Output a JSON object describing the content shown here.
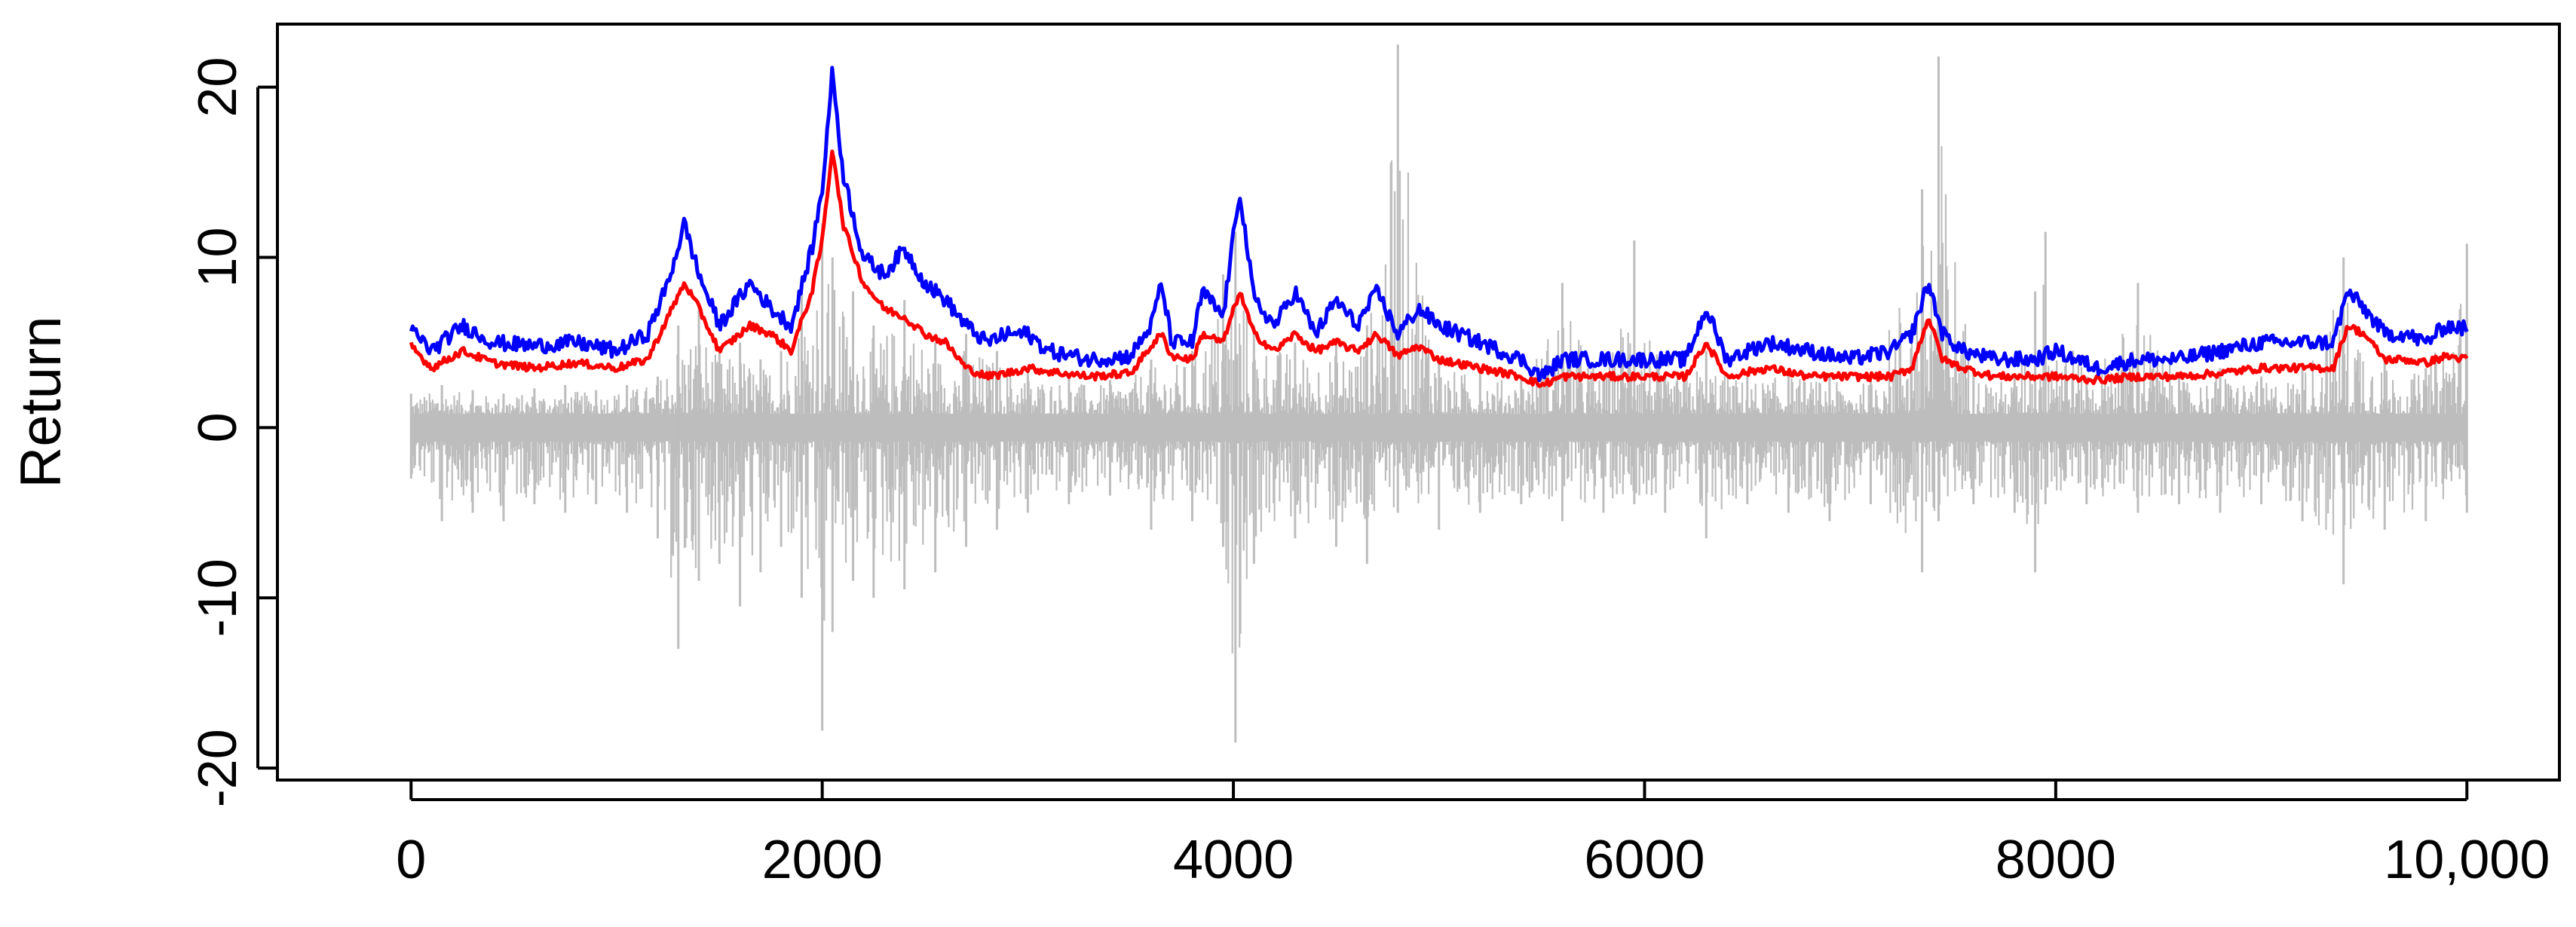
{
  "chart_data": {
    "type": "line",
    "title": "",
    "xlabel": "",
    "ylabel": "Return",
    "xlim": [
      -650,
      10450
    ],
    "ylim": [
      -20.7,
      23.7
    ],
    "grid": false,
    "legend": "none",
    "x_ticks": [
      {
        "value": 0,
        "label": "0"
      },
      {
        "value": 2000,
        "label": "2000"
      },
      {
        "value": 4000,
        "label": "4000"
      },
      {
        "value": 6000,
        "label": "6000"
      },
      {
        "value": 8000,
        "label": "8000"
      },
      {
        "value": 10000,
        "label": "10,000"
      }
    ],
    "y_ticks": [
      {
        "value": -20,
        "label": "-20"
      },
      {
        "value": -10,
        "label": "-10"
      },
      {
        "value": 0,
        "label": "0"
      },
      {
        "value": 10,
        "label": "10"
      },
      {
        "value": 20,
        "label": "20"
      }
    ],
    "n_observations": 10000,
    "series": [
      {
        "role": "returns",
        "style": "vertical-spikes",
        "color": "#bdbdbd",
        "points": [
          [
            0,
            2.0,
            -3.0
          ],
          [
            150,
            2.5,
            -5.5
          ],
          [
            300,
            2.2,
            -5.0
          ],
          [
            450,
            2.0,
            -5.5
          ],
          [
            600,
            2.3,
            -4.5
          ],
          [
            750,
            2.5,
            -5.0
          ],
          [
            900,
            2.2,
            -4.5
          ],
          [
            1050,
            2.5,
            -5.0
          ],
          [
            1200,
            3.0,
            -6.5
          ],
          [
            1300,
            6.0,
            -13.0
          ],
          [
            1400,
            7.0,
            -9.0
          ],
          [
            1500,
            4.5,
            -8.0
          ],
          [
            1600,
            5.0,
            -10.5
          ],
          [
            1700,
            4.0,
            -8.5
          ],
          [
            1800,
            4.5,
            -7.0
          ],
          [
            1900,
            8.0,
            -10.0
          ],
          [
            2000,
            12.0,
            -17.8
          ],
          [
            2050,
            10.0,
            -12.0
          ],
          [
            2150,
            8.0,
            -9.0
          ],
          [
            2250,
            6.0,
            -10.0
          ],
          [
            2400,
            7.5,
            -9.5
          ],
          [
            2550,
            5.0,
            -8.5
          ],
          [
            2700,
            5.5,
            -7.0
          ],
          [
            2850,
            4.5,
            -6.0
          ],
          [
            3000,
            3.5,
            -5.0
          ],
          [
            3200,
            3.0,
            -4.5
          ],
          [
            3400,
            2.8,
            -4.0
          ],
          [
            3600,
            4.0,
            -6.0
          ],
          [
            3800,
            4.5,
            -5.5
          ],
          [
            3950,
            9.0,
            -7.0
          ],
          [
            4010,
            11.5,
            -18.5
          ],
          [
            4100,
            6.0,
            -8.0
          ],
          [
            4300,
            5.0,
            -6.5
          ],
          [
            4500,
            5.0,
            -7.0
          ],
          [
            4650,
            6.0,
            -8.0
          ],
          [
            4800,
            22.5,
            -5.0
          ],
          [
            5000,
            4.0,
            -6.0
          ],
          [
            5200,
            3.5,
            -5.0
          ],
          [
            5400,
            3.0,
            -4.5
          ],
          [
            5600,
            8.5,
            -5.5
          ],
          [
            5800,
            3.0,
            -5.0
          ],
          [
            5950,
            11.0,
            -4.5
          ],
          [
            6100,
            3.0,
            -5.0
          ],
          [
            6300,
            4.5,
            -6.5
          ],
          [
            6500,
            3.0,
            -4.5
          ],
          [
            6700,
            3.5,
            -5.0
          ],
          [
            6900,
            3.0,
            -5.5
          ],
          [
            7100,
            3.0,
            -4.5
          ],
          [
            7350,
            14.0,
            -8.5
          ],
          [
            7430,
            21.8,
            -5.5
          ],
          [
            7600,
            3.5,
            -4.5
          ],
          [
            7800,
            3.0,
            -5.0
          ],
          [
            7900,
            8.0,
            -8.5
          ],
          [
            7950,
            11.5,
            -4.5
          ],
          [
            8150,
            3.0,
            -4.5
          ],
          [
            8400,
            8.5,
            -5.0
          ],
          [
            8600,
            3.0,
            -4.5
          ],
          [
            8800,
            3.5,
            -5.0
          ],
          [
            9000,
            3.0,
            -4.5
          ],
          [
            9200,
            3.5,
            -5.5
          ],
          [
            9400,
            10.0,
            -9.2
          ],
          [
            9600,
            4.0,
            -6.0
          ],
          [
            9800,
            3.5,
            -5.5
          ],
          [
            10000,
            10.8,
            -5.0
          ]
        ]
      },
      {
        "role": "lower-band",
        "style": "line",
        "color": "#ff0000",
        "x": [
          0,
          100,
          250,
          400,
          600,
          800,
          1000,
          1150,
          1250,
          1330,
          1400,
          1500,
          1650,
          1750,
          1850,
          1950,
          2000,
          2050,
          2100,
          2200,
          2300,
          2400,
          2500,
          2600,
          2700,
          2800,
          2900,
          3000,
          3100,
          3300,
          3500,
          3600,
          3650,
          3700,
          3800,
          3850,
          3950,
          4030,
          4100,
          4200,
          4300,
          4400,
          4500,
          4600,
          4700,
          4800,
          4900,
          5000,
          5200,
          5400,
          5500,
          5600,
          5800,
          6000,
          6200,
          6300,
          6400,
          6600,
          6800,
          7000,
          7200,
          7300,
          7380,
          7450,
          7550,
          7700,
          7900,
          8000,
          8200,
          8400,
          8600,
          8800,
          9000,
          9200,
          9350,
          9420,
          9500,
          9600,
          9700,
          9800,
          9900,
          10000
        ],
        "y": [
          4.8,
          3.5,
          4.5,
          3.8,
          3.5,
          3.8,
          3.5,
          4.0,
          6.5,
          8.5,
          7.0,
          4.5,
          6.0,
          5.5,
          4.5,
          8.0,
          11.0,
          16.5,
          12.0,
          8.5,
          7.0,
          6.5,
          5.5,
          5.0,
          3.5,
          3.0,
          3.2,
          3.5,
          3.3,
          3.0,
          3.2,
          4.8,
          5.5,
          4.2,
          4.0,
          5.5,
          5.0,
          8.0,
          5.5,
          4.5,
          5.5,
          4.5,
          5.0,
          4.5,
          5.5,
          4.2,
          4.8,
          4.0,
          3.5,
          3.0,
          2.5,
          3.0,
          3.0,
          3.0,
          3.0,
          5.0,
          3.0,
          3.5,
          3.0,
          3.0,
          3.0,
          3.5,
          6.5,
          4.0,
          3.5,
          3.0,
          3.0,
          3.0,
          2.8,
          3.0,
          3.0,
          3.2,
          3.5,
          3.5,
          3.5,
          6.0,
          5.5,
          4.0,
          4.0,
          3.8,
          4.2,
          4.0
        ]
      },
      {
        "role": "upper-band",
        "style": "line",
        "color": "#0000ff",
        "x": [
          0,
          100,
          250,
          400,
          600,
          800,
          1000,
          1150,
          1250,
          1330,
          1400,
          1500,
          1650,
          1750,
          1850,
          1950,
          2000,
          2050,
          2100,
          2200,
          2300,
          2400,
          2500,
          2600,
          2700,
          2800,
          2900,
          3000,
          3100,
          3300,
          3500,
          3600,
          3650,
          3700,
          3800,
          3850,
          3950,
          4030,
          4100,
          4200,
          4300,
          4400,
          4500,
          4600,
          4700,
          4800,
          4900,
          5000,
          5200,
          5400,
          5500,
          5600,
          5800,
          6000,
          6200,
          6300,
          6400,
          6600,
          6800,
          7000,
          7200,
          7300,
          7380,
          7450,
          7550,
          7700,
          7900,
          8000,
          8200,
          8400,
          8600,
          8800,
          9000,
          9200,
          9350,
          9420,
          9500,
          9600,
          9700,
          9800,
          9900,
          10000
        ],
        "y": [
          5.8,
          4.5,
          6.0,
          5.0,
          4.8,
          5.0,
          4.5,
          5.5,
          8.5,
          12.0,
          9.0,
          6.0,
          8.5,
          7.0,
          6.0,
          10.5,
          14.0,
          21.0,
          15.0,
          10.0,
          9.0,
          10.5,
          8.5,
          7.5,
          6.0,
          5.0,
          5.5,
          5.5,
          4.5,
          4.0,
          4.2,
          6.0,
          8.5,
          5.0,
          5.0,
          8.0,
          6.5,
          14.0,
          7.5,
          6.0,
          8.0,
          5.5,
          7.5,
          6.0,
          8.0,
          5.5,
          7.0,
          6.0,
          5.0,
          4.0,
          3.0,
          4.0,
          4.0,
          4.0,
          4.0,
          7.0,
          4.0,
          5.0,
          4.5,
          4.0,
          4.5,
          5.5,
          8.5,
          5.5,
          4.5,
          4.0,
          4.0,
          4.5,
          3.5,
          4.0,
          4.0,
          4.5,
          5.0,
          5.0,
          5.0,
          8.0,
          7.0,
          5.5,
          5.5,
          5.0,
          6.0,
          5.8
        ]
      }
    ]
  }
}
